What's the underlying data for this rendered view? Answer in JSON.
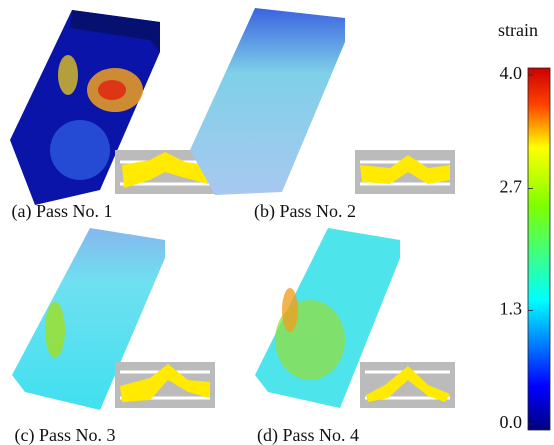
{
  "panels": [
    {
      "caption": "(a) Pass No. 1"
    },
    {
      "caption": "(b) Pass No. 2"
    },
    {
      "caption": "(c) Pass No. 3"
    },
    {
      "caption": "(d) Pass No. 4"
    }
  ],
  "colorbar": {
    "label": "strain",
    "lim": [
      0,
      4
    ],
    "ticks": [
      {
        "value": 0,
        "label": "0.0"
      },
      {
        "value": 1.3,
        "label": "1.3"
      },
      {
        "value": 2.7,
        "label": "2.7"
      },
      {
        "value": 4,
        "label": "4.0"
      }
    ]
  }
}
